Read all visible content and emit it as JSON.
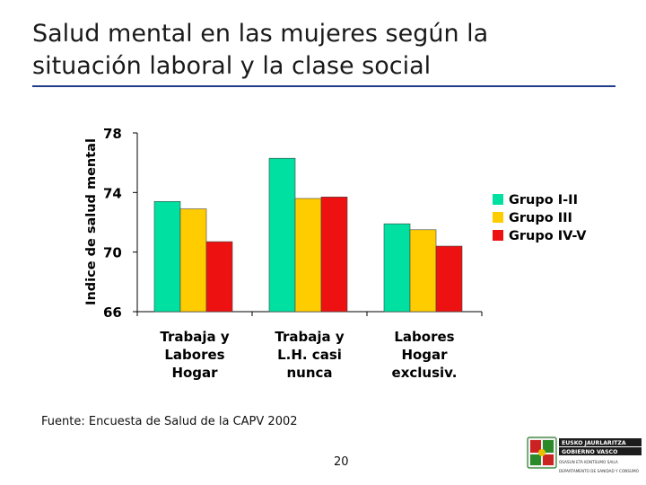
{
  "slide": {
    "title_line1": "Salud mental en las mujeres según la",
    "title_line2": "situación laboral y la clase social",
    "source": "Fuente: Encuesta de Salud de la CAPV 2002",
    "page_number": "20"
  },
  "logo": {
    "line1": "EUSKO JAURLARITZA",
    "line2": "GOBIERNO VASCO",
    "dept1": "OSASUN ETA KONTSUMO SAILA",
    "dept2": "DEPARTAMENTO DE SANIDAD Y CONSUMO"
  },
  "chart_data": {
    "type": "bar",
    "title": "",
    "xlabel": "",
    "ylabel": "Indice de salud mental",
    "categories": [
      "Trabaja y Labores Hogar",
      "Trabaja y L.H. casi nunca",
      "Labores Hogar exclusiv."
    ],
    "category_lines": [
      [
        "Trabaja y",
        "Labores",
        "Hogar"
      ],
      [
        "Trabaja y",
        "L.H. casi",
        "nunca"
      ],
      [
        "Labores",
        "Hogar",
        "exclusiv."
      ]
    ],
    "series": [
      {
        "name": "Grupo I-II",
        "color": "#00e0a0",
        "values": [
          73.4,
          76.3,
          71.9
        ]
      },
      {
        "name": "Grupo III",
        "color": "#ffcc00",
        "values": [
          72.9,
          73.6,
          71.5
        ]
      },
      {
        "name": "Grupo IV-V",
        "color": "#ee1111",
        "values": [
          70.7,
          73.7,
          70.4
        ]
      }
    ],
    "ylim": [
      66,
      78
    ],
    "yticks": [
      66,
      70,
      74,
      78
    ],
    "grid": false,
    "legend_position": "right"
  }
}
